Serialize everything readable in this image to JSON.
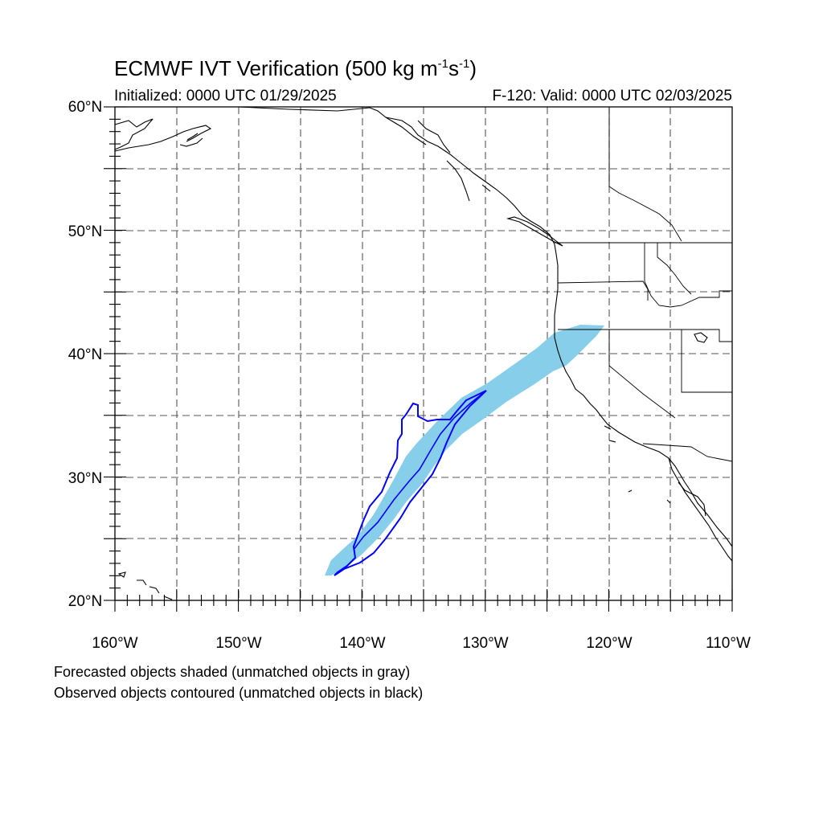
{
  "header": {
    "title_main": "ECMWF IVT Verification (500 kg m",
    "title_sup1": "-1",
    "title_mid": "s",
    "title_sup2": "-1",
    "title_end": ")",
    "initialized": "Initialized: 0000 UTC 01/29/2025",
    "valid": "F-120: Valid: 0000 UTC 02/03/2025"
  },
  "map": {
    "lon_range": [
      -160,
      -110
    ],
    "lat_range": [
      20,
      60
    ],
    "y_tick_labels": [
      "60°N",
      "50°N",
      "40°N",
      "30°N",
      "20°N"
    ],
    "x_tick_labels": [
      "160°W",
      "150°W",
      "140°W",
      "130°W",
      "120°W",
      "110°W"
    ],
    "grid": "dashed every 5°",
    "colors": {
      "forecast_fill": "#87ceeb",
      "observed_contour": "#0000ff",
      "coast": "#000000"
    }
  },
  "legend": {
    "line1": "Forecasted objects shaded (unmatched objects in gray)",
    "line2": "Observed objects contoured (unmatched objects in black)"
  }
}
